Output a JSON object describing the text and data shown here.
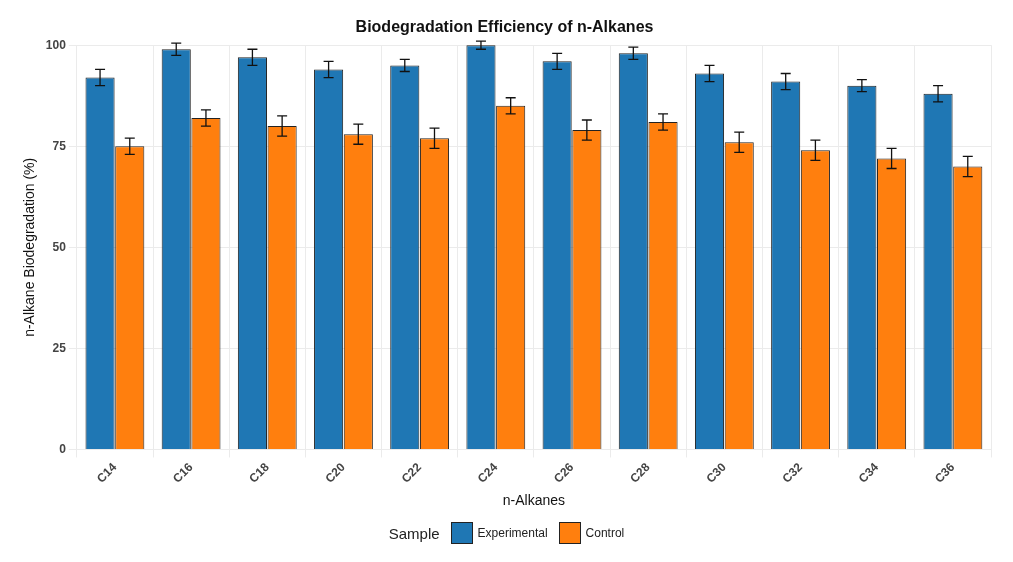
{
  "chart_data": {
    "type": "bar",
    "title": "Biodegradation Efficiency of n-Alkanes",
    "xlabel": "n-Alkanes",
    "ylabel": "n-Alkane Biodegradation (%)",
    "legend_title": "Sample",
    "categories": [
      "C14",
      "C16",
      "C18",
      "C20",
      "C22",
      "C24",
      "C26",
      "C28",
      "C30",
      "C32",
      "C34",
      "C36"
    ],
    "series": [
      {
        "name": "Experimental",
        "color": "#1f77b4",
        "values": [
          92,
          99,
          97,
          94,
          95,
          100,
          96,
          98,
          93,
          91,
          90,
          88
        ],
        "errors": [
          2,
          1.5,
          2,
          2,
          1.5,
          1,
          2,
          1.5,
          2,
          2,
          1.5,
          2
        ]
      },
      {
        "name": "Control",
        "color": "#ff7f0e",
        "values": [
          75,
          82,
          80,
          78,
          77,
          85,
          79,
          81,
          76,
          74,
          72,
          70
        ],
        "errors": [
          2,
          2,
          2.5,
          2.5,
          2.5,
          2,
          2.5,
          2,
          2.5,
          2.5,
          2.5,
          2.5
        ]
      }
    ],
    "ylim": [
      0,
      100
    ],
    "yticks": [
      0,
      25,
      50,
      75,
      100
    ],
    "grid": true,
    "legend": "bottom"
  }
}
